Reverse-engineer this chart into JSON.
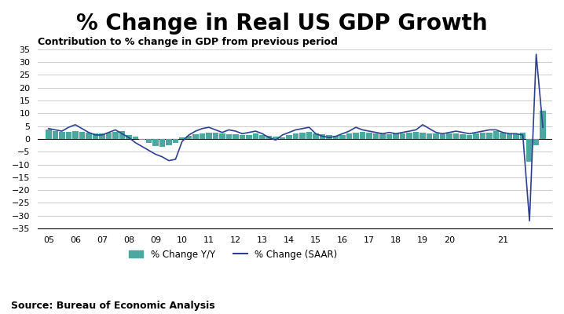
{
  "title": "% Change in Real US GDP Growth",
  "subtitle": "Contribution to % change in GDP from previous period",
  "source": "Source: Bureau of Economic Analysis",
  "ylim": [
    -35,
    35
  ],
  "yticks": [
    -35,
    -30,
    -25,
    -20,
    -15,
    -10,
    -5,
    0,
    5,
    10,
    15,
    20,
    25,
    30,
    35
  ],
  "bar_color": "#4aA8A0",
  "line_color": "#2E3F8F",
  "background_color": "#ffffff",
  "legend_bar_label": "% Change Y/Y",
  "legend_line_label": "% Change (SAAR)",
  "grid_color": "#cccccc",
  "title_fontsize": 20,
  "subtitle_fontsize": 9,
  "source_fontsize": 9,
  "bar_width": 0.22,
  "bar_x": [
    0,
    0.25,
    0.5,
    0.75,
    1,
    1.25,
    1.5,
    1.75,
    2,
    2.25,
    2.5,
    2.75,
    3,
    3.25,
    3.5,
    3.75,
    4,
    4.25,
    4.5,
    4.75,
    5,
    5.25,
    5.5,
    5.75,
    6,
    6.25,
    6.5,
    6.75,
    7,
    7.25,
    7.5,
    7.75,
    8,
    8.25,
    8.5,
    8.75,
    9,
    9.25,
    9.5,
    9.75,
    10,
    10.25,
    10.5,
    10.75,
    11,
    11.25,
    11.5,
    11.75,
    12,
    12.25,
    12.5,
    12.75,
    13,
    13.25,
    13.5,
    13.75,
    14,
    14.25,
    14.5,
    14.75,
    15,
    15.25,
    15.5,
    15.75,
    16,
    16.25,
    16.5,
    16.75,
    17,
    17.25,
    17.5,
    17.75,
    18,
    18.25,
    18.5
  ],
  "bar_values": [
    3.5,
    3.1,
    2.8,
    2.7,
    2.9,
    2.8,
    2.5,
    2.2,
    2.1,
    2.4,
    2.8,
    3.0,
    1.5,
    0.8,
    -0.5,
    -1.5,
    -2.8,
    -3.1,
    -2.5,
    -1.5,
    0.5,
    1.2,
    1.8,
    2.2,
    2.5,
    2.3,
    2.0,
    1.8,
    1.8,
    1.5,
    1.5,
    2.0,
    1.5,
    1.2,
    0.8,
    0.5,
    1.5,
    2.0,
    2.5,
    2.8,
    2.0,
    1.8,
    1.5,
    1.2,
    1.5,
    2.0,
    2.5,
    2.8,
    2.5,
    2.2,
    2.0,
    1.8,
    2.0,
    2.2,
    2.5,
    2.8,
    2.5,
    2.2,
    2.0,
    1.8,
    2.0,
    2.2,
    1.8,
    1.5,
    2.0,
    2.3,
    2.5,
    3.0,
    2.5,
    2.0,
    2.2,
    2.5,
    -9.0,
    -2.5,
    11.0
  ],
  "line_x": [
    0,
    0.25,
    0.5,
    0.75,
    1,
    1.25,
    1.5,
    1.75,
    2,
    2.25,
    2.5,
    2.75,
    3,
    3.25,
    3.5,
    3.75,
    4,
    4.25,
    4.5,
    4.75,
    5,
    5.25,
    5.5,
    5.75,
    6,
    6.25,
    6.5,
    6.75,
    7,
    7.25,
    7.5,
    7.75,
    8,
    8.25,
    8.5,
    8.75,
    9,
    9.25,
    9.5,
    9.75,
    10,
    10.25,
    10.5,
    10.75,
    11,
    11.25,
    11.5,
    11.75,
    12,
    12.25,
    12.5,
    12.75,
    13,
    13.25,
    13.5,
    13.75,
    14,
    14.25,
    14.5,
    14.75,
    15,
    15.25,
    15.5,
    15.75,
    16,
    16.25,
    16.5,
    16.75,
    17,
    17.25,
    17.5,
    17.75,
    18,
    18.25,
    18.5
  ],
  "line_values": [
    4.0,
    3.5,
    3.0,
    4.5,
    5.5,
    4.0,
    2.5,
    1.5,
    1.5,
    2.5,
    3.5,
    2.0,
    0.5,
    -1.5,
    -3.0,
    -4.5,
    -6.0,
    -7.0,
    -8.5,
    -8.0,
    -1.0,
    1.5,
    3.0,
    4.0,
    4.5,
    3.5,
    2.5,
    3.5,
    3.0,
    2.0,
    2.5,
    3.0,
    2.0,
    0.5,
    -0.5,
    1.5,
    2.5,
    3.5,
    4.0,
    4.5,
    2.0,
    1.0,
    0.5,
    1.0,
    2.0,
    3.0,
    4.5,
    3.5,
    3.0,
    2.5,
    2.0,
    2.5,
    2.0,
    2.5,
    3.0,
    3.5,
    5.5,
    4.0,
    2.5,
    2.0,
    2.5,
    3.0,
    2.5,
    2.0,
    2.5,
    3.0,
    3.5,
    3.5,
    2.5,
    2.0,
    2.0,
    1.5,
    -32.0,
    33.0,
    4.5
  ],
  "xtick_positions": [
    0,
    1,
    2,
    3,
    4,
    5,
    6,
    7,
    8,
    9,
    10,
    11,
    12,
    13,
    14,
    15,
    16,
    17,
    18,
    18.5
  ],
  "xtick_labels": [
    "05",
    "06",
    "07",
    "08",
    "09",
    "10",
    "11",
    "12",
    "13",
    "14",
    "15",
    "16",
    "17",
    "18",
    "19",
    "20",
    "",
    "21",
    "",
    ""
  ]
}
